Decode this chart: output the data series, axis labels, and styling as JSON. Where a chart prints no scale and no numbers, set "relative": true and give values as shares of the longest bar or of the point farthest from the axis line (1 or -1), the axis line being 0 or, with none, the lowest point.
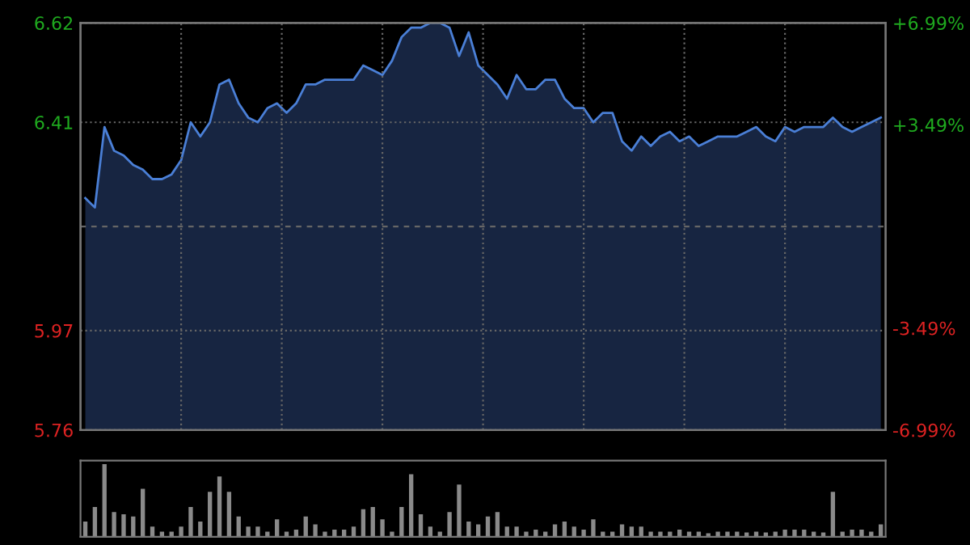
{
  "chart_data": [
    {
      "type": "area",
      "categories": [
        null,
        null,
        null,
        null,
        null,
        null,
        null,
        null,
        null,
        null,
        null,
        null,
        null,
        null,
        null,
        null,
        null,
        null,
        null,
        null,
        null,
        null,
        null,
        null,
        null,
        null,
        null,
        null,
        null,
        null,
        null,
        null,
        null,
        null,
        null,
        null,
        null,
        null,
        null,
        null,
        null,
        null,
        null,
        null,
        null,
        null,
        null,
        null,
        null,
        null,
        null,
        null,
        null,
        null,
        null,
        null,
        null,
        null,
        null,
        null,
        null,
        null,
        null,
        null,
        null,
        null,
        null,
        null,
        null,
        null,
        null,
        null,
        null,
        null,
        null,
        null,
        null,
        null,
        null,
        null,
        null,
        null,
        null,
        null
      ],
      "series": [
        {
          "color": "#4a7fd6",
          "values": [
            6.25,
            6.23,
            6.4,
            6.35,
            6.34,
            6.32,
            6.31,
            6.29,
            6.29,
            6.3,
            6.33,
            6.41,
            6.38,
            6.41,
            6.49,
            6.5,
            6.45,
            6.42,
            6.41,
            6.44,
            6.45,
            6.43,
            6.45,
            6.49,
            6.49,
            6.5,
            6.5,
            6.5,
            6.5,
            6.53,
            6.52,
            6.51,
            6.54,
            6.59,
            6.61,
            6.61,
            6.62,
            6.62,
            6.61,
            6.55,
            6.6,
            6.53,
            6.51,
            6.49,
            6.46,
            6.51,
            6.48,
            6.48,
            6.5,
            6.5,
            6.46,
            6.44,
            6.44,
            6.41,
            6.43,
            6.43,
            6.37,
            6.35,
            6.38,
            6.36,
            6.38,
            6.39,
            6.37,
            6.38,
            6.36,
            6.37,
            6.38,
            6.38,
            6.38,
            6.39,
            6.4,
            6.38,
            6.37,
            6.4,
            6.39,
            6.4,
            6.4,
            6.4,
            6.42,
            6.4,
            6.39,
            6.4,
            6.41,
            6.42
          ]
        }
      ],
      "ylim": [
        5.76,
        6.62
      ],
      "yticks": [
        5.76,
        5.97,
        6.41,
        6.62
      ],
      "y2lim": [
        -6.99,
        6.99
      ],
      "y2ticks": [
        {
          "value": -6.99,
          "label": "-6.99%"
        },
        {
          "value": -3.49,
          "label": "-3.49%"
        },
        {
          "value": 3.49,
          "label": "+3.49%"
        },
        {
          "value": 6.99,
          "label": "+6.99%"
        }
      ],
      "ref_lines": [
        {
          "axis": "y",
          "value": 6.19,
          "line_style": "dashed",
          "color": "#666666"
        }
      ],
      "grid": true,
      "tick_labels": "y"
    },
    {
      "type": "bar",
      "relative": true,
      "tick_labels": false,
      "categories": [
        null,
        null,
        null,
        null,
        null,
        null,
        null,
        null,
        null,
        null,
        null,
        null,
        null,
        null,
        null,
        null,
        null,
        null,
        null,
        null,
        null,
        null,
        null,
        null,
        null,
        null,
        null,
        null,
        null,
        null,
        null,
        null,
        null,
        null,
        null,
        null,
        null,
        null,
        null,
        null,
        null,
        null,
        null,
        null,
        null,
        null,
        null,
        null,
        null,
        null,
        null,
        null,
        null,
        null,
        null,
        null,
        null,
        null,
        null,
        null,
        null,
        null,
        null,
        null,
        null,
        null,
        null,
        null,
        null,
        null,
        null,
        null,
        null,
        null,
        null,
        null,
        null,
        null,
        null,
        null,
        null,
        null,
        null,
        null
      ],
      "series": [
        {
          "color": "#8a8a8a",
          "values": [
            0.21,
            0.41,
            1.0,
            0.34,
            0.31,
            0.28,
            0.66,
            0.14,
            0.07,
            0.07,
            0.14,
            0.41,
            0.21,
            0.62,
            0.83,
            0.62,
            0.28,
            0.14,
            0.14,
            0.07,
            0.24,
            0.07,
            0.1,
            0.28,
            0.17,
            0.07,
            0.1,
            0.1,
            0.14,
            0.38,
            0.41,
            0.24,
            0.07,
            0.41,
            0.86,
            0.31,
            0.14,
            0.07,
            0.34,
            0.72,
            0.21,
            0.17,
            0.28,
            0.34,
            0.14,
            0.14,
            0.07,
            0.1,
            0.07,
            0.17,
            0.21,
            0.14,
            0.1,
            0.24,
            0.07,
            0.07,
            0.17,
            0.14,
            0.14,
            0.07,
            0.07,
            0.07,
            0.1,
            0.07,
            0.07,
            0.05,
            0.07,
            0.07,
            0.07,
            0.06,
            0.07,
            0.06,
            0.07,
            0.1,
            0.1,
            0.1,
            0.07,
            0.06,
            0.62,
            0.07,
            0.1,
            0.1,
            0.07,
            0.17
          ]
        }
      ]
    }
  ]
}
